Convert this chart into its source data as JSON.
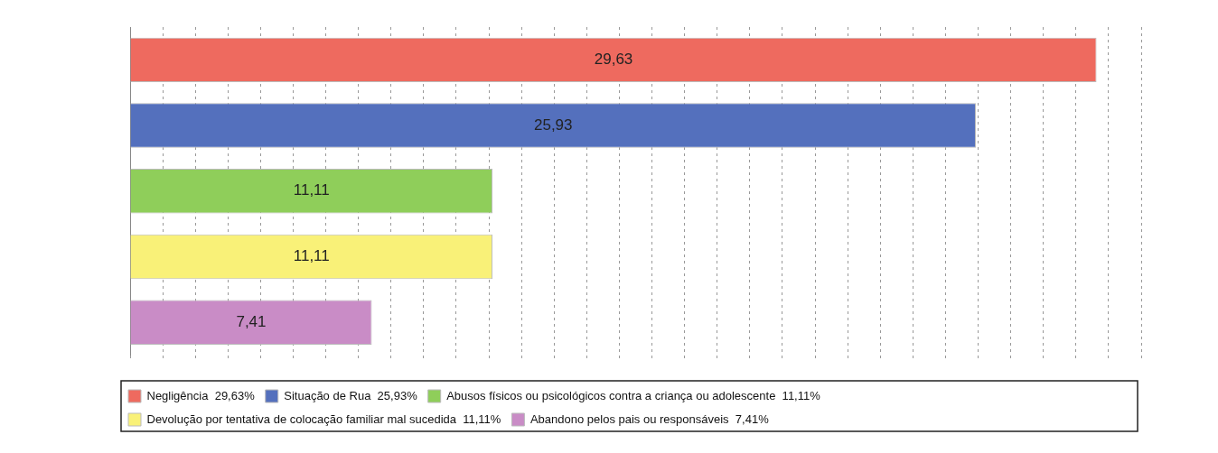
{
  "chart_data": {
    "type": "bar",
    "orientation": "horizontal",
    "stacked": true,
    "categories": [
      null,
      null,
      null,
      null,
      null
    ],
    "series": [
      {
        "name": "Negligência  29,63%",
        "color": "#ee6a5f",
        "values": [
          29.63,
          null,
          null,
          null,
          null
        ],
        "value_labels": [
          "29,63",
          null,
          null,
          null,
          null
        ]
      },
      {
        "name": "Situação de Rua  25,93%",
        "color": "#5470bd",
        "values": [
          null,
          25.93,
          null,
          null,
          null
        ],
        "value_labels": [
          null,
          "25,93",
          null,
          null,
          null
        ]
      },
      {
        "name": "Abusos físicos ou psicológicos contra a criança ou adolescente  11,11%",
        "color": "#8fce5a",
        "values": [
          null,
          null,
          11.11,
          null,
          null
        ],
        "value_labels": [
          null,
          null,
          "11,11",
          null,
          null
        ]
      },
      {
        "name": "Devolução por tentativa de colocação familiar mal sucedida  11,11%",
        "color": "#f9f178",
        "values": [
          null,
          null,
          null,
          11.11,
          null
        ],
        "value_labels": [
          null,
          null,
          null,
          "11,11",
          null
        ]
      },
      {
        "name": "Abandono pelos pais ou responsáveis  7,41%",
        "color": "#c98cc6",
        "values": [
          null,
          null,
          null,
          null,
          7.41
        ],
        "value_labels": [
          null,
          null,
          null,
          null,
          "7,41"
        ]
      }
    ],
    "xlim": [
      0,
      31
    ],
    "xticks": [
      {
        "value": 0,
        "label": null
      },
      {
        "value": 1,
        "label": null
      },
      {
        "value": 2,
        "label": null
      },
      {
        "value": 3,
        "label": null
      },
      {
        "value": 4,
        "label": null
      },
      {
        "value": 5,
        "label": null
      },
      {
        "value": 6,
        "label": null
      },
      {
        "value": 7,
        "label": null
      },
      {
        "value": 8,
        "label": null
      },
      {
        "value": 9,
        "label": null
      },
      {
        "value": 10,
        "label": null
      },
      {
        "value": 11,
        "label": null
      },
      {
        "value": 12,
        "label": null
      },
      {
        "value": 13,
        "label": null
      },
      {
        "value": 14,
        "label": null
      },
      {
        "value": 15,
        "label": null
      },
      {
        "value": 16,
        "label": null
      },
      {
        "value": 17,
        "label": null
      },
      {
        "value": 18,
        "label": null
      },
      {
        "value": 19,
        "label": null
      },
      {
        "value": 20,
        "label": null
      },
      {
        "value": 21,
        "label": null
      },
      {
        "value": 22,
        "label": null
      },
      {
        "value": 23,
        "label": null
      },
      {
        "value": 24,
        "label": null
      },
      {
        "value": 25,
        "label": null
      },
      {
        "value": 26,
        "label": null
      },
      {
        "value": 27,
        "label": null
      },
      {
        "value": 28,
        "label": null
      },
      {
        "value": 29,
        "label": null
      },
      {
        "value": 30,
        "label": null
      },
      {
        "value": 31,
        "label": null
      }
    ],
    "grid": "x",
    "legend": "bottom"
  }
}
